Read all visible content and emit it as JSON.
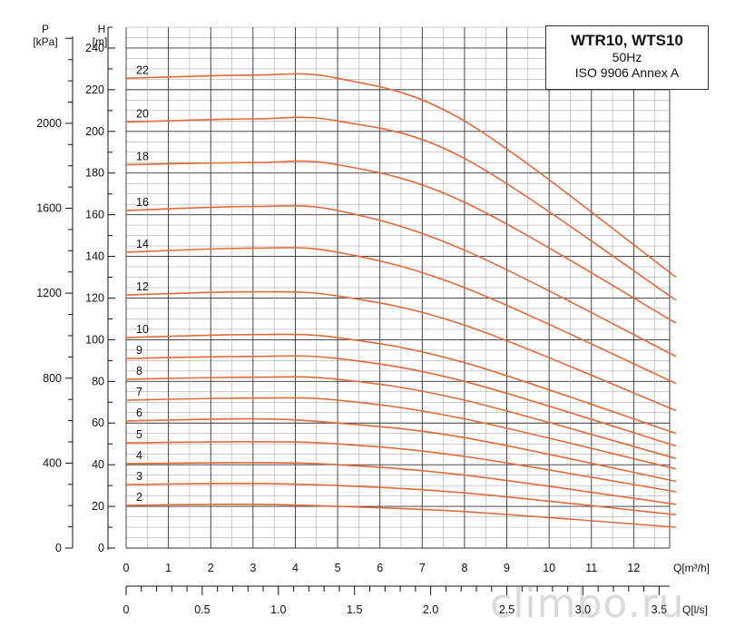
{
  "title": {
    "line1": "WTR10, WTS10",
    "line2": "50Hz",
    "line3": "ISO 9906  Annex A"
  },
  "watermark": "climbo.ru",
  "chart_data": {
    "type": "line",
    "y_axis": {
      "label_top": "H",
      "label_unit": "[m]",
      "range": [
        0,
        250
      ],
      "ticks": [
        0,
        20,
        40,
        60,
        80,
        100,
        120,
        140,
        160,
        180,
        200,
        220,
        240
      ]
    },
    "p_axis": {
      "label_top": "P",
      "label_unit": "[kPa]",
      "ticks": [
        0,
        400,
        800,
        1200,
        1600,
        2000
      ]
    },
    "x_axis": {
      "label": "Q[m³/h]",
      "range": [
        0,
        13
      ],
      "ticks": [
        0,
        1,
        2,
        3,
        4,
        5,
        6,
        7,
        8,
        9,
        10,
        11,
        12
      ]
    },
    "x2_axis": {
      "label": "Q[l/s]",
      "ticks": [
        "0",
        "0.5",
        "1.0",
        "1.5",
        "2.0",
        "2.5",
        "3.0",
        "3.5"
      ]
    },
    "grid": true,
    "series": [
      {
        "name": "2",
        "x": [
          0,
          3,
          5,
          8,
          13
        ],
        "y": [
          20.5,
          21,
          20,
          17.5,
          10
        ]
      },
      {
        "name": "3",
        "x": [
          0,
          3,
          5,
          8,
          13
        ],
        "y": [
          30.5,
          31,
          30,
          26.5,
          16
        ]
      },
      {
        "name": "4",
        "x": [
          0,
          3,
          5,
          8,
          13
        ],
        "y": [
          40.5,
          41,
          40,
          35,
          21
        ]
      },
      {
        "name": "5",
        "x": [
          0,
          3,
          5,
          8,
          13
        ],
        "y": [
          50.5,
          51,
          50,
          44,
          27
        ]
      },
      {
        "name": "6",
        "x": [
          0,
          3,
          5,
          8,
          13
        ],
        "y": [
          61,
          62,
          60,
          53,
          32
        ]
      },
      {
        "name": "7",
        "x": [
          0,
          3,
          5,
          8,
          13
        ],
        "y": [
          71,
          72,
          71,
          62,
          38
        ]
      },
      {
        "name": "8",
        "x": [
          0,
          3,
          5,
          8,
          13
        ],
        "y": [
          81,
          82,
          81,
          71,
          43
        ]
      },
      {
        "name": "9",
        "x": [
          0,
          3,
          5,
          8,
          13
        ],
        "y": [
          91,
          92,
          91,
          80,
          49
        ]
      },
      {
        "name": "10",
        "x": [
          0,
          3,
          5,
          8,
          13
        ],
        "y": [
          101,
          102.5,
          101,
          89,
          55
        ]
      },
      {
        "name": "12",
        "x": [
          0,
          3,
          5,
          8,
          13
        ],
        "y": [
          121.5,
          123,
          121,
          107,
          66
        ]
      },
      {
        "name": "14",
        "x": [
          0,
          3,
          5,
          8,
          13
        ],
        "y": [
          142,
          144,
          142,
          125,
          79
        ]
      },
      {
        "name": "16",
        "x": [
          0,
          3,
          5,
          8,
          13
        ],
        "y": [
          162,
          164,
          162,
          143,
          92
        ]
      },
      {
        "name": "18",
        "x": [
          0,
          3,
          5,
          8,
          13
        ],
        "y": [
          184,
          185,
          184,
          166,
          108
        ]
      },
      {
        "name": "20",
        "x": [
          0,
          3,
          5,
          8,
          13
        ],
        "y": [
          204.5,
          206,
          205,
          187,
          119
        ]
      },
      {
        "name": "22",
        "x": [
          0,
          3,
          5,
          8,
          13
        ],
        "y": [
          225.5,
          227,
          225.5,
          205,
          130
        ]
      }
    ]
  }
}
